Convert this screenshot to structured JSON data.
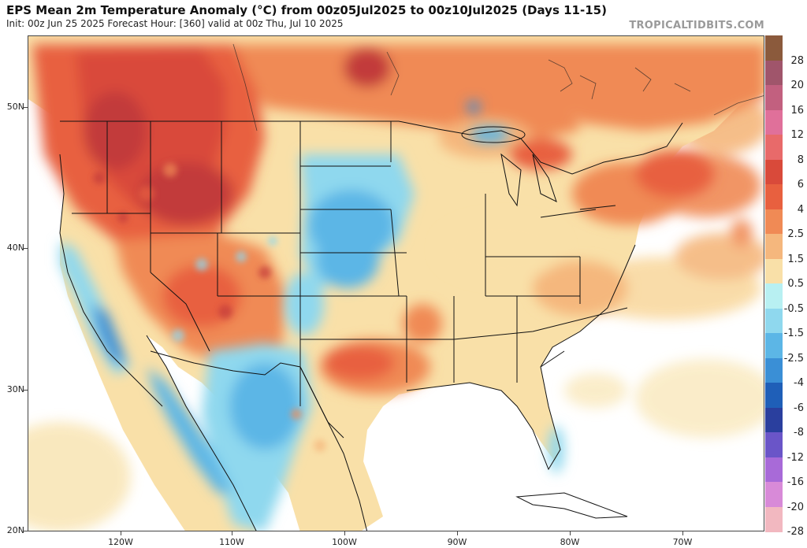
{
  "header": {
    "title": "EPS Mean 2m Temperature Anomaly (°C) from 00z05Jul2025 to 00z10Jul2025 (Days 11-15)",
    "subtitle": "Init: 00z Jun 25 2025   Forecast Hour: [360]   valid at 00z Thu, Jul 10 2025"
  },
  "watermark": "TROPICALTIDBITS.COM",
  "axes": {
    "lat_labels": [
      "50N",
      "40N",
      "30N",
      "20N"
    ],
    "lon_labels": [
      "120W",
      "110W",
      "100W",
      "90W",
      "80W",
      "70W"
    ]
  },
  "colorbar": {
    "labels": [
      "28",
      "20",
      "16",
      "12",
      "8",
      "6",
      "4",
      "2.5",
      "1.5",
      "0.5",
      "-0.5",
      "-1.5",
      "-2.5",
      "-4",
      "-6",
      "-8",
      "-12",
      "-16",
      "-20",
      "-28"
    ],
    "colors": [
      "#8b5a3c",
      "#a0556b",
      "#c2607f",
      "#e0709a",
      "#e86a6a",
      "#d94a3a",
      "#e8603f",
      "#f08a55",
      "#f5b77d",
      "#f9e0a8",
      "#b8f0f2",
      "#8fd8ee",
      "#5cb6e6",
      "#3a8fd6",
      "#1f5fb8",
      "#2a3f9e",
      "#6a55c8",
      "#a86ad8",
      "#d88ad8",
      "#f2b8c0"
    ]
  },
  "map": {
    "colors": {
      "land": "#f9e0a8",
      "ocean": "#ffffff",
      "warm": "#f08a55",
      "hot": "#d94a3a",
      "very_hot": "#c23a3a",
      "cool": "#8fd8ee",
      "cold": "#5cb6e6",
      "border": "#111111"
    }
  }
}
